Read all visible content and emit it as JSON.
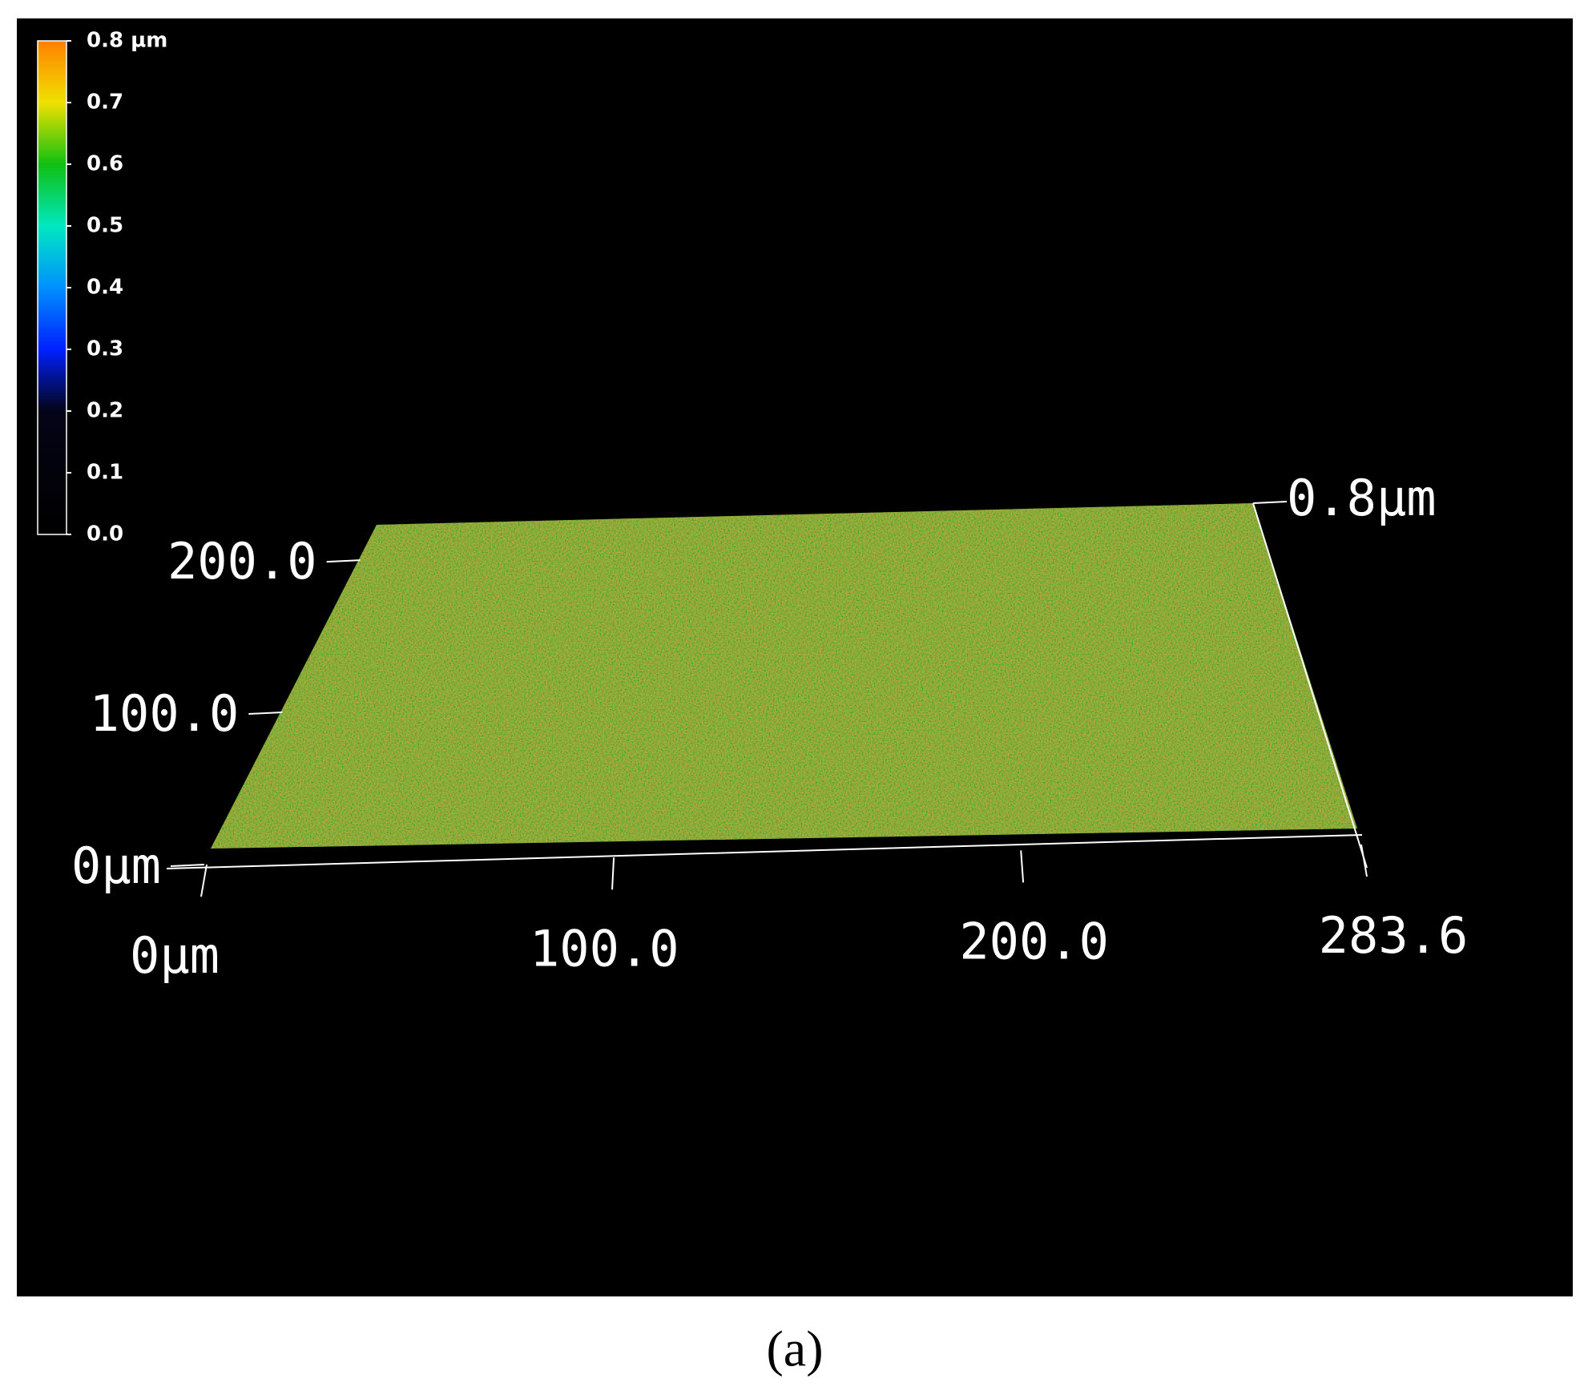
{
  "chart_data": {
    "type": "surface",
    "caption": "(a)",
    "xlim": [
      0,
      283.6
    ],
    "xticks": [
      {
        "value": 0,
        "label": "0μm"
      },
      {
        "value": 100,
        "label": "100.0"
      },
      {
        "value": 200,
        "label": "200.0"
      },
      {
        "value": 283.6,
        "label": "283.6"
      }
    ],
    "ylim": [
      0,
      212.7
    ],
    "yticks": [
      {
        "value": 0,
        "label": "0μm"
      },
      {
        "value": 100,
        "label": "100.0"
      },
      {
        "value": 200,
        "label": "200.0"
      }
    ],
    "zlim": [
      0,
      0.8
    ],
    "zticks": [
      {
        "value": 0.8,
        "label": "0.8μm"
      }
    ],
    "colorbar": {
      "lim": [
        0,
        0.8
      ],
      "ticks": [
        {
          "value": 0,
          "label": "0.0"
        },
        0.1,
        0.2,
        0.3,
        0.4,
        0.5,
        0.6,
        0.7,
        {
          "value": 0.8,
          "label": "0.8 µm"
        }
      ],
      "colors": [
        "#000000",
        "#02020a",
        "#040418",
        "#0020ff",
        "#0090ff",
        "#00e8c0",
        "#10c010",
        "#f0e000",
        "#ff8000"
      ]
    },
    "surface_color": "#2f7a10"
  }
}
